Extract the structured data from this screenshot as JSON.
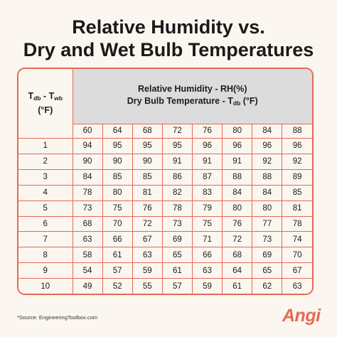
{
  "title": {
    "line1": "Relative Humidity vs.",
    "line2": "Dry and Wet Bulb Temperatures"
  },
  "table": {
    "corner_main": "T",
    "corner_sub_db": "db",
    "corner_dash": " - T",
    "corner_sub_wb": "wb",
    "corner_unit": "(°F)",
    "header_line1": "Relative Humidity - RH(%)",
    "header_line2_prefix": "Dry Bulb Temperature - T",
    "header_line2_sub": "db",
    "header_line2_suffix": " (°F)",
    "dry_bulb_temps": [
      "60",
      "64",
      "68",
      "72",
      "76",
      "80",
      "84",
      "88"
    ],
    "rows": [
      {
        "diff": "1",
        "values": [
          "94",
          "95",
          "95",
          "95",
          "96",
          "96",
          "96",
          "96"
        ]
      },
      {
        "diff": "2",
        "values": [
          "90",
          "90",
          "90",
          "91",
          "91",
          "91",
          "92",
          "92"
        ]
      },
      {
        "diff": "3",
        "values": [
          "84",
          "85",
          "85",
          "86",
          "87",
          "88",
          "88",
          "89"
        ]
      },
      {
        "diff": "4",
        "values": [
          "78",
          "80",
          "81",
          "82",
          "83",
          "84",
          "84",
          "85"
        ]
      },
      {
        "diff": "5",
        "values": [
          "73",
          "75",
          "76",
          "78",
          "79",
          "80",
          "80",
          "81"
        ]
      },
      {
        "diff": "6",
        "values": [
          "68",
          "70",
          "72",
          "73",
          "75",
          "76",
          "77",
          "78"
        ]
      },
      {
        "diff": "7",
        "values": [
          "63",
          "66",
          "67",
          "69",
          "71",
          "72",
          "73",
          "74"
        ]
      },
      {
        "diff": "8",
        "values": [
          "58",
          "61",
          "63",
          "65",
          "66",
          "68",
          "69",
          "70"
        ]
      },
      {
        "diff": "9",
        "values": [
          "54",
          "57",
          "59",
          "61",
          "63",
          "64",
          "65",
          "67"
        ]
      },
      {
        "diff": "10",
        "values": [
          "49",
          "52",
          "55",
          "57",
          "59",
          "61",
          "62",
          "63"
        ]
      }
    ]
  },
  "source": "*Source: EngineeringToolbox.com",
  "logo": "Angi",
  "colors": {
    "accent": "#e46a57",
    "header_bg": "#dcdcdc",
    "page_bg": "#fbf6ef"
  }
}
